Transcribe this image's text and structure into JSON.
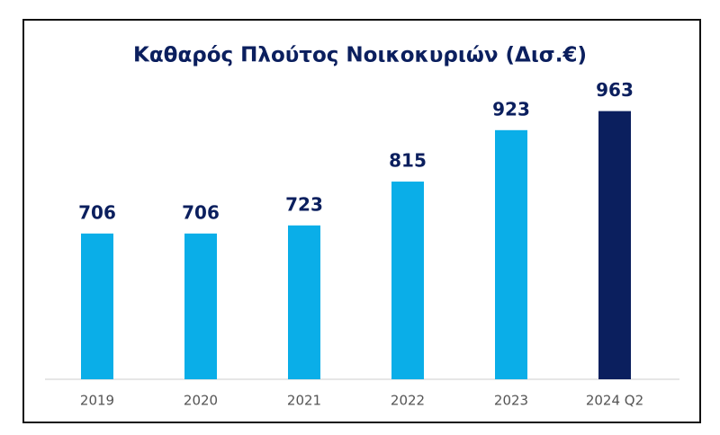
{
  "chart_data": {
    "type": "bar",
    "title": "Καθαρός Πλούτος Νοικοκυριών (Δισ.€)",
    "categories": [
      "2019",
      "2020",
      "2021",
      "2022",
      "2023",
      "2024 Q2"
    ],
    "values": [
      706,
      706,
      723,
      815,
      923,
      963
    ],
    "colors": [
      "#0aaee8",
      "#0aaee8",
      "#0aaee8",
      "#0aaee8",
      "#0aaee8",
      "#0b1f5e"
    ],
    "ylim": [
      400,
      1000
    ]
  }
}
